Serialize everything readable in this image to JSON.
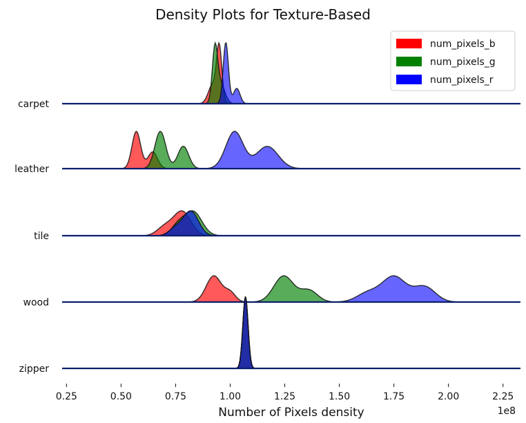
{
  "chart_data": {
    "type": "ridgeline",
    "title": "Density Plots for Texture-Based",
    "xlabel": "Number of Pixels density",
    "ylabel": "",
    "x_offset_label": "1e8",
    "xlim": [
      0.23,
      2.33
    ],
    "xticks": [
      "0.25",
      "0.50",
      "0.75",
      "1.00",
      "1.25",
      "1.50",
      "1.75",
      "2.00",
      "2.25"
    ],
    "xtick_values": [
      0.25,
      0.5,
      0.75,
      1.0,
      1.25,
      1.5,
      1.75,
      2.0,
      2.25
    ],
    "grid": false,
    "legend_position": "top-right",
    "categories": [
      "carpet",
      "leather",
      "tile",
      "wood",
      "zipper"
    ],
    "series": [
      {
        "name": "num_pixels_b",
        "color": "#ff0000",
        "alpha": 0.65,
        "densities": {
          "carpet": [
            {
              "mean": 0.95,
              "sd": 0.012,
              "weight": 1.0
            },
            {
              "mean": 0.92,
              "sd": 0.02,
              "weight": 0.35
            }
          ],
          "leather": [
            {
              "mean": 0.57,
              "sd": 0.02,
              "weight": 1.0
            },
            {
              "mean": 0.645,
              "sd": 0.022,
              "weight": 0.45
            }
          ],
          "tile": [
            {
              "mean": 0.78,
              "sd": 0.04,
              "weight": 1.0
            },
            {
              "mean": 0.7,
              "sd": 0.035,
              "weight": 0.35
            }
          ],
          "wood": [
            {
              "mean": 0.925,
              "sd": 0.035,
              "weight": 1.0
            },
            {
              "mean": 1.0,
              "sd": 0.025,
              "weight": 0.35
            }
          ],
          "zipper": [
            {
              "mean": 1.07,
              "sd": 0.012,
              "weight": 1.0
            }
          ]
        }
      },
      {
        "name": "num_pixels_g",
        "color": "#008000",
        "alpha": 0.65,
        "densities": {
          "carpet": [
            {
              "mean": 0.93,
              "sd": 0.012,
              "weight": 1.0
            },
            {
              "mean": 0.955,
              "sd": 0.02,
              "weight": 0.4
            }
          ],
          "leather": [
            {
              "mean": 0.68,
              "sd": 0.025,
              "weight": 1.0
            },
            {
              "mean": 0.785,
              "sd": 0.025,
              "weight": 0.6
            }
          ],
          "tile": [
            {
              "mean": 0.83,
              "sd": 0.04,
              "weight": 1.0
            },
            {
              "mean": 0.76,
              "sd": 0.03,
              "weight": 0.4
            }
          ],
          "wood": [
            {
              "mean": 1.245,
              "sd": 0.045,
              "weight": 1.0
            },
            {
              "mean": 1.36,
              "sd": 0.04,
              "weight": 0.45
            }
          ],
          "zipper": [
            {
              "mean": 1.07,
              "sd": 0.012,
              "weight": 1.0
            }
          ]
        }
      },
      {
        "name": "num_pixels_r",
        "color": "#0000ff",
        "alpha": 0.6,
        "densities": {
          "carpet": [
            {
              "mean": 0.98,
              "sd": 0.012,
              "weight": 1.0
            },
            {
              "mean": 1.03,
              "sd": 0.015,
              "weight": 0.25
            }
          ],
          "leather": [
            {
              "mean": 1.02,
              "sd": 0.04,
              "weight": 1.0
            },
            {
              "mean": 1.17,
              "sd": 0.05,
              "weight": 0.6
            }
          ],
          "tile": [
            {
              "mean": 0.82,
              "sd": 0.035,
              "weight": 1.0
            },
            {
              "mean": 0.75,
              "sd": 0.03,
              "weight": 0.3
            }
          ],
          "wood": [
            {
              "mean": 1.75,
              "sd": 0.055,
              "weight": 1.0
            },
            {
              "mean": 1.89,
              "sd": 0.05,
              "weight": 0.6
            },
            {
              "mean": 1.63,
              "sd": 0.05,
              "weight": 0.35
            }
          ],
          "zipper": [
            {
              "mean": 1.07,
              "sd": 0.012,
              "weight": 1.0
            }
          ]
        }
      }
    ]
  }
}
